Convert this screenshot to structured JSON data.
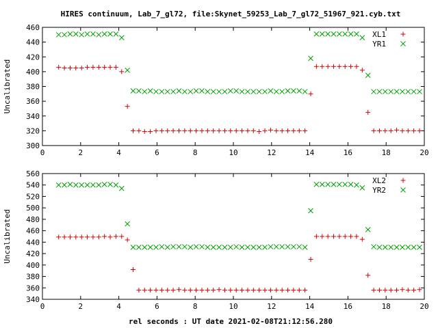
{
  "title": "HIRES continuum, Lab_7_gl72, file:Skynet_59253_Lab_7_gl72_51967_921.cyb.txt",
  "xlabel": "rel seconds : UT date 2021-02-08T21:12:56.280",
  "colors": {
    "series_a": "#d40000",
    "series_b": "#009e00",
    "axis": "#000000"
  },
  "chart_data": [
    {
      "type": "scatter",
      "ylabel": "Uncalibrated",
      "xlim": [
        0,
        20
      ],
      "ylim": [
        300,
        460
      ],
      "xticks": [
        0,
        2,
        4,
        6,
        8,
        10,
        12,
        14,
        16,
        18,
        20
      ],
      "yticks": [
        300,
        320,
        340,
        360,
        380,
        400,
        420,
        440,
        460
      ],
      "grid": false,
      "legend": "top-right",
      "series": [
        {
          "name": "XL1",
          "marker": "plus",
          "x": [
            0.85,
            1.15,
            1.45,
            1.75,
            2.05,
            2.35,
            2.65,
            2.95,
            3.25,
            3.55,
            3.85,
            4.15,
            4.45,
            4.75,
            5.05,
            5.35,
            5.65,
            5.95,
            6.25,
            6.55,
            6.85,
            7.15,
            7.45,
            7.75,
            8.05,
            8.35,
            8.65,
            8.95,
            9.25,
            9.55,
            9.85,
            10.15,
            10.45,
            10.75,
            11.05,
            11.35,
            11.65,
            11.95,
            12.25,
            12.55,
            12.85,
            13.15,
            13.45,
            13.75,
            14.05,
            14.35,
            14.65,
            14.95,
            15.25,
            15.55,
            15.85,
            16.15,
            16.45,
            16.75,
            17.05,
            17.35,
            17.65,
            17.95,
            18.25,
            18.55,
            18.85,
            19.15,
            19.45,
            19.75
          ],
          "y": [
            406,
            405,
            405,
            405,
            405,
            406,
            406,
            406,
            406,
            406,
            406,
            400,
            353,
            320,
            320,
            319,
            319,
            320,
            320,
            320,
            320,
            320,
            320,
            320,
            320,
            320,
            320,
            320,
            320,
            320,
            320,
            320,
            320,
            320,
            320,
            319,
            320,
            321,
            320,
            320,
            320,
            320,
            320,
            320,
            370,
            407,
            407,
            407,
            407,
            407,
            407,
            407,
            407,
            402,
            345,
            320,
            320,
            320,
            320,
            321,
            320,
            320,
            320,
            320
          ]
        },
        {
          "name": "YR1",
          "marker": "cross",
          "x": [
            0.85,
            1.15,
            1.45,
            1.75,
            2.05,
            2.35,
            2.65,
            2.95,
            3.25,
            3.55,
            3.85,
            4.15,
            4.45,
            4.75,
            5.05,
            5.35,
            5.65,
            5.95,
            6.25,
            6.55,
            6.85,
            7.15,
            7.45,
            7.75,
            8.05,
            8.35,
            8.65,
            8.95,
            9.25,
            9.55,
            9.85,
            10.15,
            10.45,
            10.75,
            11.05,
            11.35,
            11.65,
            11.95,
            12.25,
            12.55,
            12.85,
            13.15,
            13.45,
            13.75,
            14.05,
            14.35,
            14.65,
            14.95,
            15.25,
            15.55,
            15.85,
            16.15,
            16.45,
            16.75,
            17.05,
            17.35,
            17.65,
            17.95,
            18.25,
            18.55,
            18.85,
            19.15,
            19.45,
            19.75
          ],
          "y": [
            450,
            450,
            451,
            451,
            450,
            451,
            451,
            450,
            451,
            451,
            451,
            446,
            402,
            374,
            374,
            373,
            374,
            373,
            373,
            373,
            373,
            374,
            373,
            373,
            374,
            374,
            373,
            373,
            373,
            373,
            374,
            374,
            373,
            373,
            373,
            373,
            373,
            374,
            373,
            373,
            374,
            374,
            374,
            373,
            418,
            451,
            451,
            451,
            451,
            451,
            451,
            451,
            451,
            446,
            395,
            373,
            373,
            373,
            373,
            373,
            373,
            373,
            373,
            373
          ]
        }
      ]
    },
    {
      "type": "scatter",
      "ylabel": "Uncalibrated",
      "xlim": [
        0,
        20
      ],
      "ylim": [
        340,
        560
      ],
      "xticks": [
        0,
        2,
        4,
        6,
        8,
        10,
        12,
        14,
        16,
        18,
        20
      ],
      "yticks": [
        340,
        360,
        380,
        400,
        420,
        440,
        460,
        480,
        500,
        520,
        540,
        560
      ],
      "grid": false,
      "legend": "top-right",
      "series": [
        {
          "name": "XL2",
          "marker": "plus",
          "x": [
            0.85,
            1.15,
            1.45,
            1.75,
            2.05,
            2.35,
            2.65,
            2.95,
            3.25,
            3.55,
            3.85,
            4.15,
            4.45,
            4.75,
            5.05,
            5.35,
            5.65,
            5.95,
            6.25,
            6.55,
            6.85,
            7.15,
            7.45,
            7.75,
            8.05,
            8.35,
            8.65,
            8.95,
            9.25,
            9.55,
            9.85,
            10.15,
            10.45,
            10.75,
            11.05,
            11.35,
            11.65,
            11.95,
            12.25,
            12.55,
            12.85,
            13.15,
            13.45,
            13.75,
            14.05,
            14.35,
            14.65,
            14.95,
            15.25,
            15.55,
            15.85,
            16.15,
            16.45,
            16.75,
            17.05,
            17.35,
            17.65,
            17.95,
            18.25,
            18.55,
            18.85,
            19.15,
            19.45,
            19.75
          ],
          "y": [
            449,
            449,
            449,
            449,
            449,
            449,
            449,
            449,
            450,
            449,
            450,
            450,
            444,
            392,
            356,
            356,
            356,
            356,
            356,
            356,
            356,
            357,
            356,
            356,
            356,
            356,
            356,
            356,
            357,
            356,
            356,
            356,
            356,
            356,
            356,
            356,
            356,
            356,
            356,
            356,
            356,
            356,
            356,
            356,
            410,
            450,
            450,
            450,
            450,
            450,
            450,
            450,
            450,
            445,
            382,
            356,
            356,
            356,
            356,
            356,
            357,
            356,
            356,
            357
          ]
        },
        {
          "name": "YR2",
          "marker": "cross",
          "x": [
            0.85,
            1.15,
            1.45,
            1.75,
            2.05,
            2.35,
            2.65,
            2.95,
            3.25,
            3.55,
            3.85,
            4.15,
            4.45,
            4.75,
            5.05,
            5.35,
            5.65,
            5.95,
            6.25,
            6.55,
            6.85,
            7.15,
            7.45,
            7.75,
            8.05,
            8.35,
            8.65,
            8.95,
            9.25,
            9.55,
            9.85,
            10.15,
            10.45,
            10.75,
            11.05,
            11.35,
            11.65,
            11.95,
            12.25,
            12.55,
            12.85,
            13.15,
            13.45,
            13.75,
            14.05,
            14.35,
            14.65,
            14.95,
            15.25,
            15.55,
            15.85,
            16.15,
            16.45,
            16.75,
            17.05,
            17.35,
            17.65,
            17.95,
            18.25,
            18.55,
            18.85,
            19.15,
            19.45,
            19.75
          ],
          "y": [
            540,
            540,
            541,
            540,
            540,
            540,
            540,
            540,
            541,
            541,
            540,
            534,
            472,
            431,
            431,
            431,
            431,
            431,
            432,
            431,
            432,
            432,
            432,
            431,
            432,
            432,
            431,
            431,
            431,
            431,
            431,
            432,
            431,
            431,
            431,
            431,
            431,
            432,
            432,
            432,
            432,
            432,
            432,
            431,
            495,
            541,
            541,
            541,
            541,
            541,
            541,
            541,
            540,
            535,
            462,
            432,
            431,
            431,
            431,
            431,
            431,
            431,
            431,
            431
          ]
        }
      ]
    }
  ]
}
